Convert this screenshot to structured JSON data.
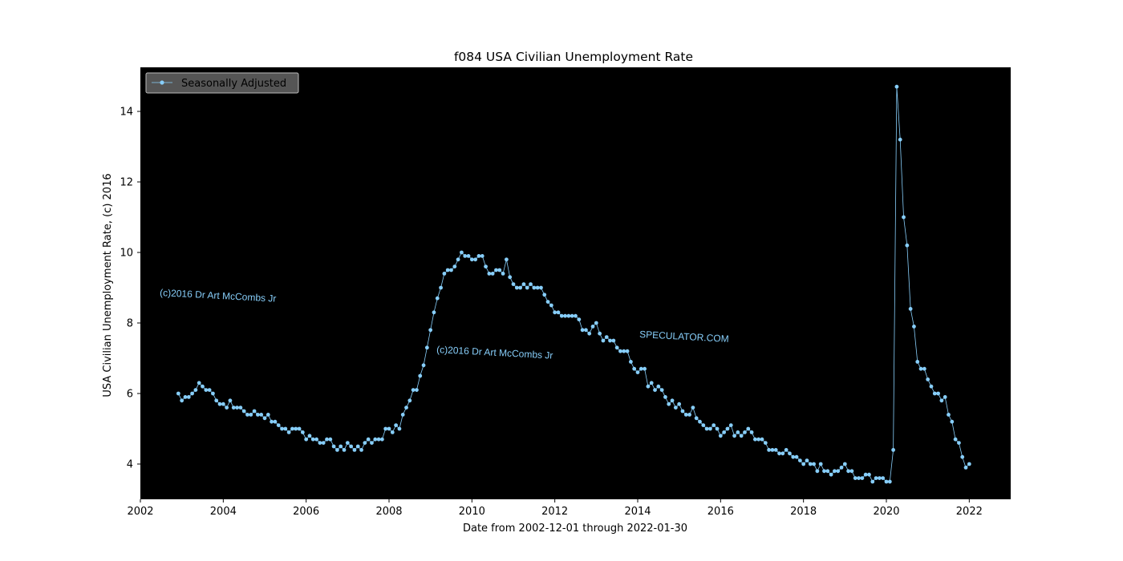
{
  "chart_data": {
    "type": "line",
    "title": "f084 USA Civilian Unemployment Rate",
    "xlabel": "Date from 2002-12-01 through 2022-01-30",
    "ylabel": "USA Civilian Unemployment Rate, (c) 2016",
    "xlim": [
      2002.0,
      2023.0
    ],
    "ylim": [
      3.0,
      15.25
    ],
    "x_ticks": [
      "2002",
      "2004",
      "2006",
      "2008",
      "2010",
      "2012",
      "2014",
      "2016",
      "2018",
      "2020",
      "2022"
    ],
    "y_ticks": [
      "4",
      "6",
      "8",
      "10",
      "12",
      "14"
    ],
    "grid": false,
    "legend_position": "top-left",
    "series": [
      {
        "name": "Seasonally Adjusted",
        "color": "#87CEFA",
        "marker": "circle",
        "start": "2002-12",
        "frequency": "monthly",
        "values": [
          6.0,
          5.8,
          5.9,
          5.9,
          6.0,
          6.1,
          6.3,
          6.2,
          6.1,
          6.1,
          6.0,
          5.8,
          5.7,
          5.7,
          5.6,
          5.8,
          5.6,
          5.6,
          5.6,
          5.5,
          5.4,
          5.4,
          5.5,
          5.4,
          5.4,
          5.3,
          5.4,
          5.2,
          5.2,
          5.1,
          5.0,
          5.0,
          4.9,
          5.0,
          5.0,
          5.0,
          4.9,
          4.7,
          4.8,
          4.7,
          4.7,
          4.6,
          4.6,
          4.7,
          4.7,
          4.5,
          4.4,
          4.5,
          4.4,
          4.6,
          4.5,
          4.4,
          4.5,
          4.4,
          4.6,
          4.7,
          4.6,
          4.7,
          4.7,
          4.7,
          5.0,
          5.0,
          4.9,
          5.1,
          5.0,
          5.4,
          5.6,
          5.8,
          6.1,
          6.1,
          6.5,
          6.8,
          7.3,
          7.8,
          8.3,
          8.7,
          9.0,
          9.4,
          9.5,
          9.5,
          9.6,
          9.8,
          10.0,
          9.9,
          9.9,
          9.8,
          9.8,
          9.9,
          9.9,
          9.6,
          9.4,
          9.4,
          9.5,
          9.5,
          9.4,
          9.8,
          9.3,
          9.1,
          9.0,
          9.0,
          9.1,
          9.0,
          9.1,
          9.0,
          9.0,
          9.0,
          8.8,
          8.6,
          8.5,
          8.3,
          8.3,
          8.2,
          8.2,
          8.2,
          8.2,
          8.2,
          8.1,
          7.8,
          7.8,
          7.7,
          7.9,
          8.0,
          7.7,
          7.5,
          7.6,
          7.5,
          7.5,
          7.3,
          7.2,
          7.2,
          7.2,
          6.9,
          6.7,
          6.6,
          6.7,
          6.7,
          6.2,
          6.3,
          6.1,
          6.2,
          6.1,
          5.9,
          5.7,
          5.8,
          5.6,
          5.7,
          5.5,
          5.4,
          5.4,
          5.6,
          5.3,
          5.2,
          5.1,
          5.0,
          5.0,
          5.1,
          5.0,
          4.8,
          4.9,
          5.0,
          5.1,
          4.8,
          4.9,
          4.8,
          4.9,
          5.0,
          4.9,
          4.7,
          4.7,
          4.7,
          4.6,
          4.4,
          4.4,
          4.4,
          4.3,
          4.3,
          4.4,
          4.3,
          4.2,
          4.2,
          4.1,
          4.0,
          4.1,
          4.0,
          4.0,
          3.8,
          4.0,
          3.8,
          3.8,
          3.7,
          3.8,
          3.8,
          3.9,
          4.0,
          3.8,
          3.8,
          3.6,
          3.6,
          3.6,
          3.7,
          3.7,
          3.5,
          3.6,
          3.6,
          3.6,
          3.5,
          3.5,
          4.4,
          14.7,
          13.2,
          11.0,
          10.2,
          8.4,
          7.9,
          6.9,
          6.7,
          6.7,
          6.4,
          6.2,
          6.0,
          6.0,
          5.8,
          5.9,
          5.4,
          5.2,
          4.7,
          4.6,
          4.2,
          3.9,
          4.0
        ]
      }
    ],
    "annotations": [
      {
        "text": "(c)2016 Dr Art McCombs Jr",
        "color": "#87CEFA"
      },
      {
        "text": "(c)2016 Dr Art McCombs Jr",
        "color": "#87CEFA"
      },
      {
        "text": "SPECULATOR.COM",
        "color": "#87CEFA"
      }
    ]
  },
  "colors": {
    "plot_background": "#000000",
    "series_color": "#87CEFA",
    "legend_background": "#555555",
    "legend_border": "#BBBBBB"
  }
}
